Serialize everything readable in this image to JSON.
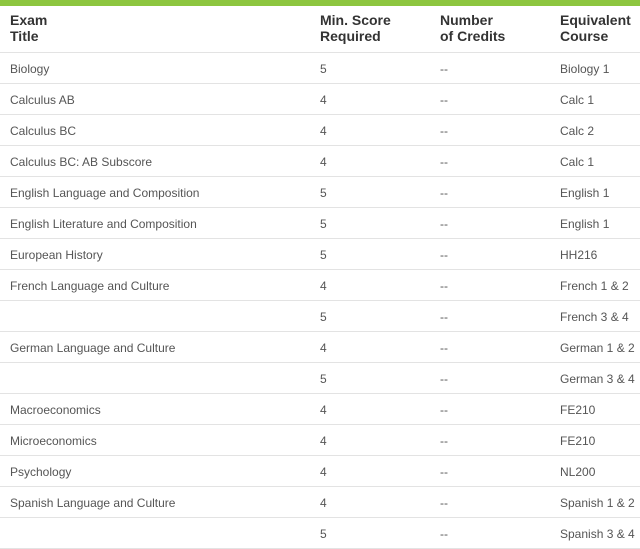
{
  "headers": {
    "exam1": "Exam",
    "exam2": "Title",
    "score1": "Min. Score",
    "score2": "Required",
    "credits1": "Number",
    "credits2": "of Credits",
    "equiv1": "Equivalent",
    "equiv2": "Course"
  },
  "rows": [
    {
      "exam": "Biology",
      "score": "5",
      "credits": "--",
      "equiv": "Biology 1"
    },
    {
      "exam": "Calculus AB",
      "score": "4",
      "credits": "--",
      "equiv": "Calc 1"
    },
    {
      "exam": "Calculus BC",
      "score": "4",
      "credits": "--",
      "equiv": "Calc 2"
    },
    {
      "exam": "Calculus BC: AB Subscore",
      "score": "4",
      "credits": "--",
      "equiv": "Calc 1"
    },
    {
      "exam": "English Language and Composition",
      "score": "5",
      "credits": "--",
      "equiv": "English 1"
    },
    {
      "exam": "English Literature and Composition",
      "score": "5",
      "credits": "--",
      "equiv": "English 1"
    },
    {
      "exam": "European History",
      "score": "5",
      "credits": "--",
      "equiv": "HH216"
    },
    {
      "exam": "French Language and Culture",
      "score": "4",
      "credits": "--",
      "equiv": "French 1 & 2"
    },
    {
      "exam": "",
      "score": "5",
      "credits": "--",
      "equiv": "French 3 & 4"
    },
    {
      "exam": "German Language and Culture",
      "score": "4",
      "credits": "--",
      "equiv": "German 1 & 2"
    },
    {
      "exam": "",
      "score": "5",
      "credits": "--",
      "equiv": "German 3 & 4"
    },
    {
      "exam": "Macroeconomics",
      "score": "4",
      "credits": "--",
      "equiv": "FE210"
    },
    {
      "exam": "Microeconomics",
      "score": "4",
      "credits": "--",
      "equiv": "FE210"
    },
    {
      "exam": "Psychology",
      "score": "4",
      "credits": "--",
      "equiv": "NL200"
    },
    {
      "exam": "Spanish Language and Culture",
      "score": "4",
      "credits": "--",
      "equiv": "Spanish 1 & 2"
    },
    {
      "exam": "",
      "score": "5",
      "credits": "--",
      "equiv": "Spanish 3 & 4"
    }
  ],
  "colors": {
    "accent": "#8dc63f",
    "header_text": "#333333",
    "body_text": "#555555",
    "row_border": "#e3e3e3",
    "background": "#ffffff"
  }
}
